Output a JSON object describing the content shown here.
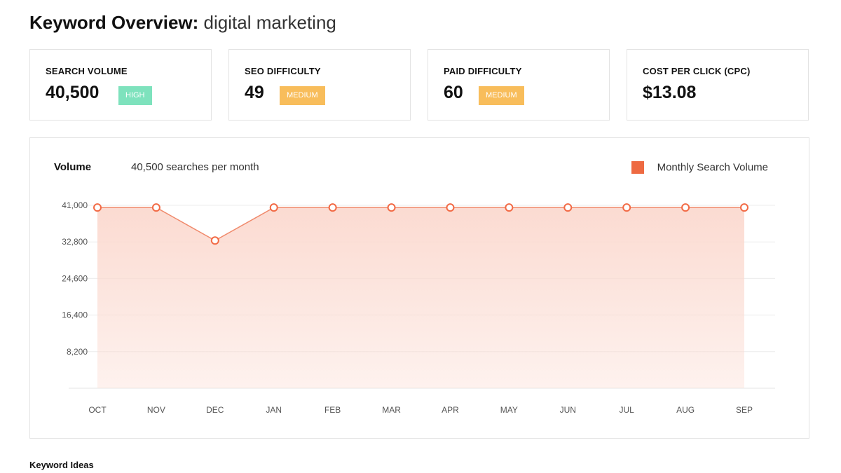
{
  "header": {
    "title_prefix": "Keyword Overview:",
    "keyword": "digital marketing"
  },
  "cards": [
    {
      "label": "SEARCH VOLUME",
      "value": "40,500",
      "badge": "HIGH",
      "badge_color": "#7ee2bd"
    },
    {
      "label": "SEO DIFFICULTY",
      "value": "49",
      "badge": "MEDIUM",
      "badge_color": "#f8bd5b"
    },
    {
      "label": "PAID DIFFICULTY",
      "value": "60",
      "badge": "MEDIUM",
      "badge_color": "#f8bd5b"
    },
    {
      "label": "COST PER CLICK (CPC)",
      "value": "$13.08"
    }
  ],
  "chart": {
    "title": "Volume",
    "subtitle": "40,500 searches per month",
    "legend": "Monthly Search Volume",
    "colors": {
      "line": "#f08a6c",
      "fill": "#fbd9cf",
      "marker": "#f26a45",
      "swatch": "#ee6a42"
    }
  },
  "chart_data": {
    "type": "area",
    "categories": [
      "OCT",
      "NOV",
      "DEC",
      "JAN",
      "FEB",
      "MAR",
      "APR",
      "MAY",
      "JUN",
      "JUL",
      "AUG",
      "SEP"
    ],
    "series": [
      {
        "name": "Monthly Search Volume",
        "values": [
          40500,
          40500,
          33100,
          40500,
          40500,
          40500,
          40500,
          40500,
          40500,
          40500,
          40500,
          40500
        ]
      }
    ],
    "yticks": [
      "8,200",
      "16,400",
      "24,600",
      "32,800",
      "41,000"
    ],
    "ylim": [
      0,
      41000
    ],
    "grid": true,
    "legend_position": "top-right"
  },
  "sections": {
    "keyword_ideas": "Keyword Ideas"
  }
}
